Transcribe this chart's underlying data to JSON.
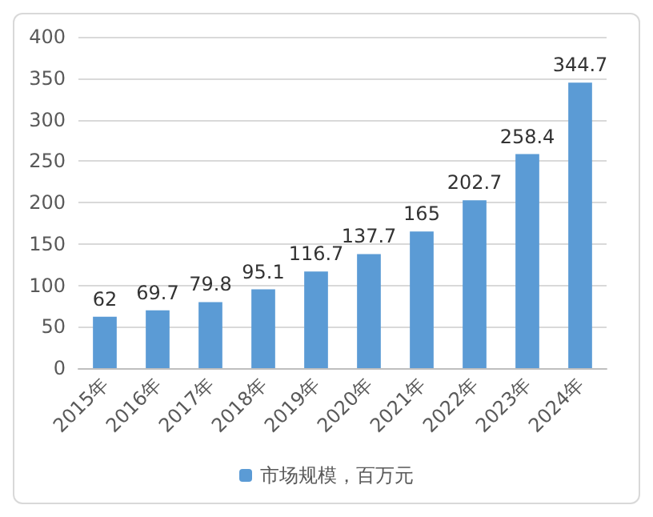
{
  "chart_data": {
    "type": "bar",
    "categories": [
      "2015年",
      "2016年",
      "2017年",
      "2018年",
      "2019年",
      "2020年",
      "2021年",
      "2022年",
      "2023年",
      "2024年"
    ],
    "series": [
      {
        "name": "市场规模，百万元",
        "color": "#5b9bd5",
        "values": [
          62,
          69.7,
          79.8,
          95.1,
          116.7,
          137.7,
          165,
          202.7,
          258.4,
          344.7
        ]
      }
    ],
    "ylim": [
      0,
      400
    ],
    "yticks": [
      0,
      50,
      100,
      150,
      200,
      250,
      300,
      350,
      400
    ],
    "grid": "y",
    "legend": "bottom",
    "data_labels": true
  }
}
